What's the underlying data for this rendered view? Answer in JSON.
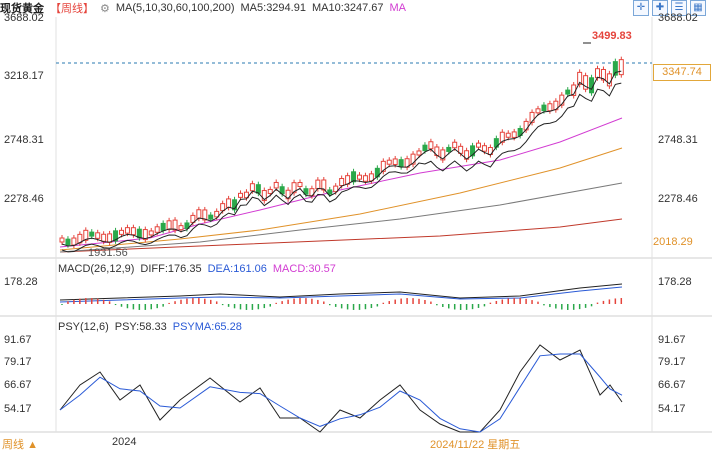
{
  "header": {
    "title": "现货黄金",
    "period": "【周线】",
    "gear_icon": "gear-icon",
    "ma_label": "MA(5,10,30,60,100,200)",
    "ma5": "MA5:3294.91",
    "ma10": "MA10:3247.67",
    "ma_tag": "MA"
  },
  "toolbar": [
    {
      "icon": "crosshair-icon",
      "glyph": "✛"
    },
    {
      "icon": "expand-icon",
      "glyph": "✚"
    },
    {
      "icon": "list-icon",
      "glyph": "☰"
    },
    {
      "icon": "grid-icon",
      "glyph": "▦"
    }
  ],
  "main_axis": {
    "top": "3688.02",
    "upper": "3218.17",
    "mid": "2748.31",
    "lower": "2278.46",
    "bottom_right": "2018.29",
    "current_price": "3347.74",
    "high_marker": "3499.83",
    "low_marker": "1931.56"
  },
  "macd": {
    "label": "MACD(26,12,9)",
    "diff": "DIFF:176.35",
    "dea": "DEA:161.06",
    "macd": "MACD:30.57",
    "axis": "178.28"
  },
  "psy": {
    "label": "PSY(12,6)",
    "psy": "PSY:58.33",
    "psyma": "PSYMA:65.28",
    "ticks": [
      "91.67",
      "79.17",
      "66.67",
      "54.17"
    ]
  },
  "footer": {
    "period_label": "周线",
    "period_arrow": "▲",
    "year": "2024",
    "date": "2024/11/22 星期五"
  },
  "colors": {
    "up": "#e5443c",
    "down": "#2aa84a",
    "ma5": "#222222",
    "ma10": "#222222",
    "ma30": "#d23cd2",
    "ma60": "#e0922a",
    "ma100": "#7a7a7a",
    "ma200": "#c0392b",
    "psyma": "#2a5ad6"
  }
}
